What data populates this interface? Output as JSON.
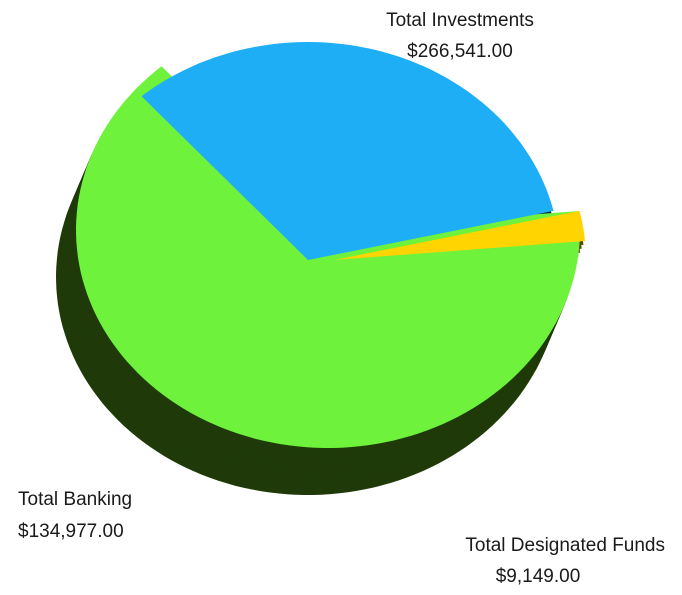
{
  "chart_data": {
    "type": "pie",
    "title": "",
    "categories": [
      "Total Investments",
      "Total Banking",
      "Total Designated Funds"
    ],
    "values": [
      266541.0,
      134977.0,
      9149.0
    ],
    "value_labels": [
      "$266,541.00",
      "$134,977.00",
      "$9,149.00"
    ],
    "style": "3d-exploded",
    "colors": {
      "Total Investments": "#6ef23c",
      "Total Banking": "#1eaef6",
      "Total Designated Funds": "#ffd400"
    },
    "side_colors": {
      "Total Investments": "#1f3a08",
      "Total Banking": "#06283d",
      "Total Designated Funds": "#5a4800"
    }
  }
}
